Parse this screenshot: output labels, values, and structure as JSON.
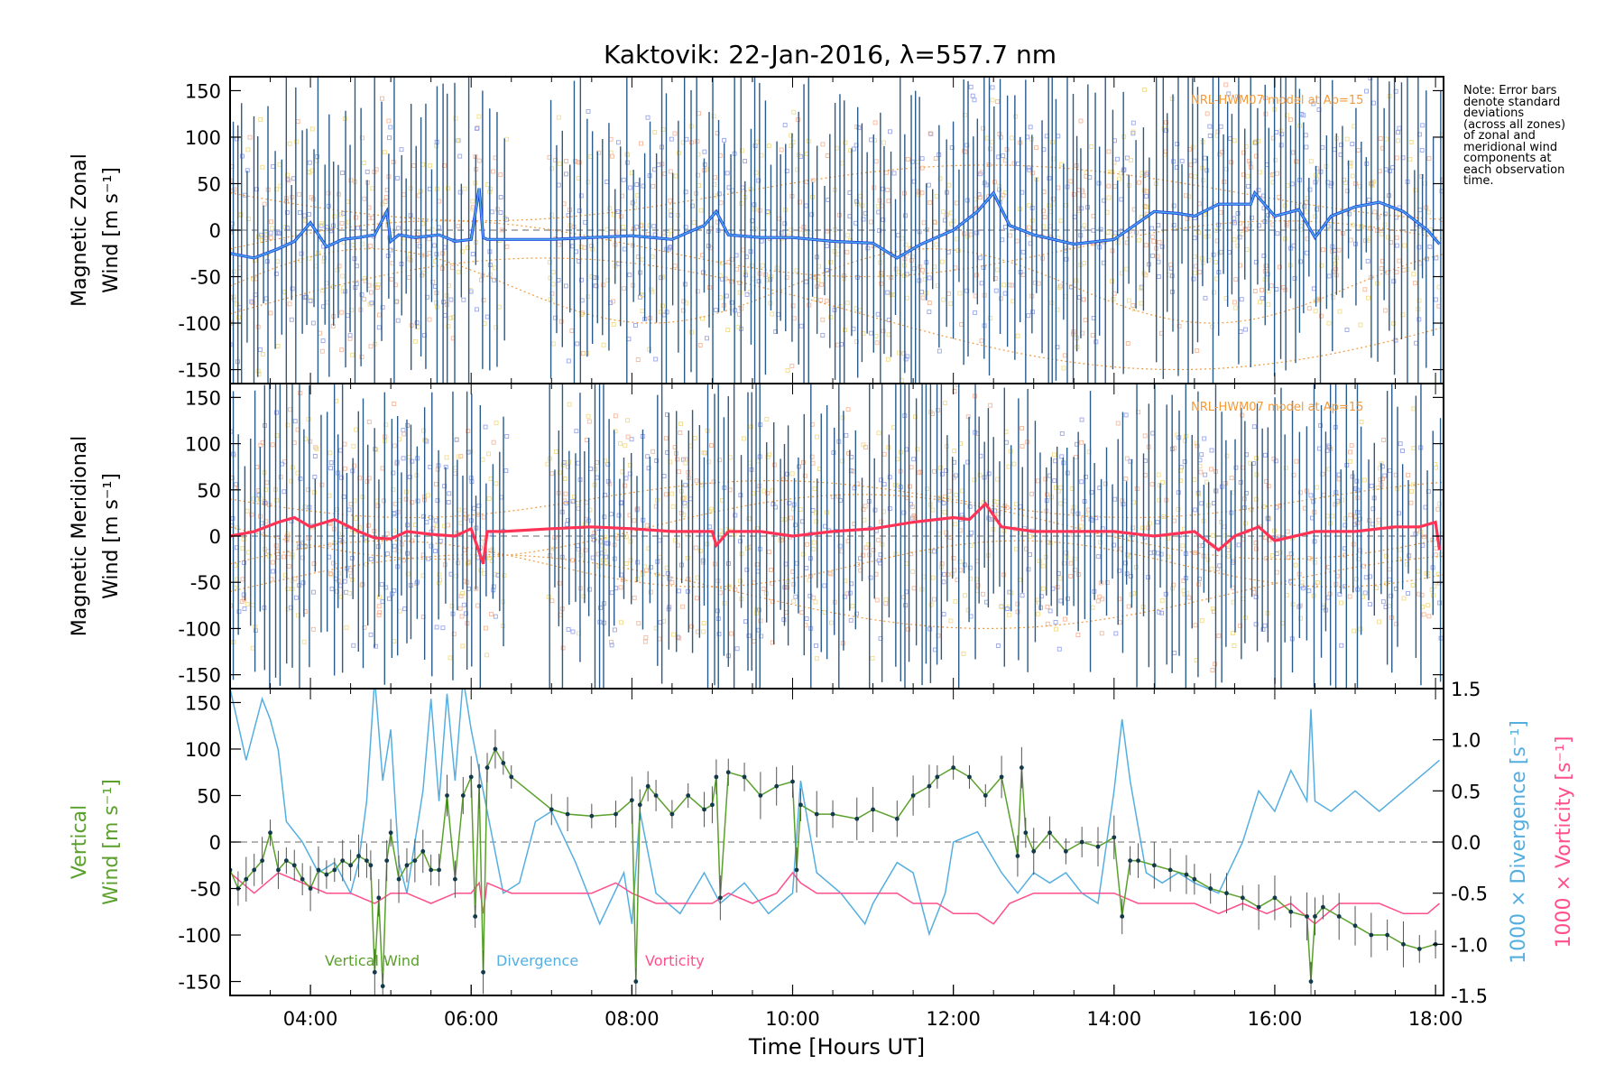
{
  "title": "Kaktovik: 22-Jan-2016, λ=557.7 nm",
  "note_lines": [
    "Note: Error bars",
    "denote standard",
    "deviations",
    "(across all zones)",
    "of zonal and",
    "meridional wind",
    "components at",
    "each observation",
    "time."
  ],
  "colors": {
    "zonal": "#1f3fe0",
    "zonal_light": "#4aa8e8",
    "meridional": "#ff3355",
    "vertical": "#5aa02c",
    "divergence": "#55aee0",
    "vorticity": "#ff4f8c",
    "errorbar": "#2a5a88",
    "model": "#f39a3c",
    "dots_orange": "#f7b89a",
    "dots_yellow": "#f2dd8a",
    "dots_blue": "#9aa6e8",
    "zero_line": "#888888"
  },
  "chart_data": [
    {
      "type": "line",
      "panel": "zonal",
      "ylabel_lines": [
        "Magnetic Zonal",
        "Wind [m s⁻¹]"
      ],
      "ylim": [
        -165,
        165
      ],
      "yticks": [
        -150,
        -100,
        -50,
        0,
        50,
        100,
        150
      ],
      "xlim": [
        3.0,
        18.1
      ],
      "model_label": "NRL-HWM07 model at Ap=15",
      "series": [
        {
          "values_x": [
            3.0,
            3.3,
            3.6,
            3.8,
            4.0,
            4.2,
            4.4,
            4.6,
            4.8,
            4.95,
            5.0,
            5.1,
            5.3,
            5.6,
            5.8,
            6.0,
            6.1,
            6.15,
            6.2,
            6.3,
            6.5,
            7.0,
            7.5,
            8.0,
            8.5,
            8.9,
            9.05,
            9.2,
            9.6,
            10.0,
            10.5,
            11.0,
            11.3,
            11.6,
            12.0,
            12.3,
            12.5,
            12.7,
            13.0,
            13.5,
            14.0,
            14.5,
            14.8,
            15.0,
            15.3,
            15.7,
            15.75,
            16.0,
            16.3,
            16.5,
            16.7,
            17.0,
            17.3,
            17.6,
            17.9,
            18.05
          ],
          "values_y": [
            -25,
            -30,
            -20,
            -12,
            8,
            -18,
            -10,
            -8,
            -5,
            20,
            -12,
            -5,
            -8,
            -5,
            -12,
            -10,
            45,
            -8,
            -10,
            -10,
            -10,
            -10,
            -8,
            -6,
            -10,
            5,
            20,
            -5,
            -8,
            -8,
            -12,
            -14,
            -30,
            -15,
            0,
            20,
            40,
            5,
            -5,
            -15,
            -10,
            20,
            18,
            15,
            28,
            28,
            40,
            15,
            22,
            -8,
            15,
            25,
            30,
            20,
            0,
            -15
          ]
        }
      ]
    },
    {
      "type": "line",
      "panel": "meridional",
      "ylabel_lines": [
        "Magnetic Meridional",
        "Wind [m s⁻¹]"
      ],
      "ylim": [
        -165,
        165
      ],
      "yticks": [
        -150,
        -100,
        -50,
        0,
        50,
        100,
        150
      ],
      "xlim": [
        3.0,
        18.1
      ],
      "model_label": "NRL-HWM07 model at Ap=15",
      "series": [
        {
          "values_x": [
            3.0,
            3.3,
            3.6,
            3.8,
            4.0,
            4.3,
            4.6,
            4.8,
            5.0,
            5.2,
            5.5,
            5.8,
            6.0,
            6.15,
            6.2,
            6.4,
            7.0,
            7.5,
            8.0,
            8.5,
            9.0,
            9.05,
            9.2,
            9.6,
            10.0,
            10.5,
            11.0,
            11.5,
            12.0,
            12.2,
            12.4,
            12.6,
            13.0,
            13.5,
            14.0,
            14.5,
            15.0,
            15.3,
            15.5,
            15.8,
            16.0,
            16.5,
            17.0,
            17.5,
            17.8,
            18.0,
            18.05
          ],
          "values_y": [
            0,
            5,
            15,
            20,
            10,
            18,
            5,
            -2,
            -3,
            5,
            2,
            0,
            8,
            -30,
            5,
            5,
            8,
            10,
            8,
            5,
            5,
            -10,
            5,
            5,
            0,
            5,
            8,
            15,
            20,
            18,
            35,
            10,
            5,
            5,
            5,
            0,
            5,
            -15,
            0,
            10,
            -5,
            5,
            5,
            10,
            10,
            15,
            -15
          ]
        }
      ]
    },
    {
      "type": "line",
      "panel": "vertical",
      "ylabel_lines": [
        "Vertical",
        "Wind [m s⁻¹]"
      ],
      "ylim": [
        -165,
        165
      ],
      "yticks": [
        -150,
        -100,
        -50,
        0,
        50,
        100,
        150
      ],
      "right_ylim": [
        -1.5,
        1.5
      ],
      "right_yticks": [
        "-1.5",
        "-1.0",
        "-0.5",
        "0.0",
        "0.5",
        "1.0",
        "1.5"
      ],
      "right_label_divergence": "1000 × Divergence [s⁻¹]",
      "right_label_vorticity": "1000 × Vorticity [s⁻¹]",
      "xlabel": "Time [Hours UT]",
      "xticks": [
        "04:00",
        "06:00",
        "08:00",
        "10:00",
        "12:00",
        "14:00",
        "16:00",
        "18:00"
      ],
      "xtick_values": [
        4,
        6,
        8,
        10,
        12,
        14,
        16,
        18
      ],
      "xlim": [
        3.0,
        18.1
      ],
      "legend": [
        "Vertical Wind",
        "Divergence",
        "Vorticity"
      ],
      "series": [
        {
          "name": "Vertical Wind",
          "x": [
            3.0,
            3.1,
            3.2,
            3.3,
            3.4,
            3.5,
            3.6,
            3.7,
            3.8,
            3.9,
            4.0,
            4.1,
            4.2,
            4.3,
            4.4,
            4.5,
            4.6,
            4.7,
            4.75,
            4.8,
            4.85,
            4.9,
            4.95,
            5.0,
            5.1,
            5.2,
            5.3,
            5.4,
            5.5,
            5.6,
            5.7,
            5.8,
            5.9,
            6.0,
            6.05,
            6.1,
            6.15,
            6.2,
            6.3,
            6.4,
            6.5,
            7.0,
            7.2,
            7.5,
            7.8,
            8.0,
            8.05,
            8.1,
            8.2,
            8.3,
            8.5,
            8.7,
            8.9,
            9.0,
            9.05,
            9.1,
            9.2,
            9.4,
            9.6,
            9.8,
            10.0,
            10.05,
            10.1,
            10.3,
            10.5,
            10.8,
            11.0,
            11.3,
            11.5,
            11.7,
            11.8,
            12.0,
            12.2,
            12.4,
            12.6,
            12.8,
            12.85,
            12.9,
            13.0,
            13.2,
            13.4,
            13.6,
            13.8,
            14.0,
            14.1,
            14.2,
            14.3,
            14.5,
            14.7,
            14.9,
            15.0,
            15.2,
            15.4,
            15.6,
            15.8,
            16.0,
            16.2,
            16.4,
            16.45,
            16.5,
            16.6,
            16.8,
            17.0,
            17.2,
            17.4,
            17.6,
            17.8,
            18.0
          ],
          "y": [
            -30,
            -50,
            -40,
            -30,
            -20,
            10,
            -30,
            -20,
            -25,
            -40,
            -50,
            -30,
            -35,
            -30,
            -20,
            -25,
            -15,
            -20,
            -25,
            -140,
            -60,
            -155,
            -20,
            10,
            -40,
            -25,
            -20,
            -10,
            -30,
            -30,
            50,
            -40,
            50,
            70,
            -80,
            60,
            -140,
            80,
            100,
            85,
            70,
            35,
            30,
            28,
            30,
            45,
            -150,
            40,
            60,
            50,
            30,
            50,
            35,
            40,
            70,
            -60,
            75,
            70,
            50,
            60,
            65,
            -30,
            40,
            30,
            30,
            25,
            35,
            25,
            50,
            60,
            70,
            80,
            70,
            50,
            70,
            -15,
            80,
            10,
            -10,
            10,
            -10,
            0,
            -5,
            5,
            -80,
            -20,
            -20,
            -25,
            -30,
            -35,
            -40,
            -50,
            -55,
            -60,
            -70,
            -60,
            -75,
            -80,
            -150,
            -80,
            -70,
            -80,
            -90,
            -100,
            -100,
            -110,
            -115,
            -110
          ]
        },
        {
          "name": "Divergence",
          "x": [
            3.0,
            3.2,
            3.4,
            3.5,
            3.6,
            3.7,
            3.9,
            4.1,
            4.3,
            4.5,
            4.6,
            4.7,
            4.8,
            4.9,
            5.0,
            5.1,
            5.2,
            5.4,
            5.5,
            5.6,
            5.7,
            5.8,
            5.9,
            6.0,
            6.1,
            6.2,
            6.4,
            6.6,
            6.8,
            7.0,
            7.3,
            7.6,
            7.9,
            8.0,
            8.1,
            8.3,
            8.6,
            8.9,
            9.1,
            9.4,
            9.7,
            10.0,
            10.1,
            10.3,
            10.6,
            10.9,
            11.0,
            11.3,
            11.5,
            11.7,
            11.9,
            12.0,
            12.3,
            12.6,
            12.8,
            13.0,
            13.2,
            13.4,
            13.6,
            13.8,
            14.0,
            14.1,
            14.2,
            14.4,
            14.6,
            14.8,
            15.0,
            15.3,
            15.6,
            15.8,
            16.0,
            16.2,
            16.4,
            16.45,
            16.5,
            16.7,
            17.0,
            17.3,
            17.6,
            17.9,
            18.05
          ],
          "y": [
            1.5,
            0.8,
            1.4,
            1.2,
            0.9,
            0.2,
            0.0,
            -0.3,
            -0.2,
            -0.5,
            -0.2,
            0.4,
            1.6,
            0.6,
            1.1,
            -0.2,
            -0.5,
            0.5,
            1.4,
            0.4,
            1.45,
            0.6,
            1.6,
            1.1,
            0.7,
            0.3,
            -0.5,
            -0.4,
            0.2,
            0.3,
            -0.2,
            -0.8,
            -0.3,
            -0.8,
            0.3,
            -0.5,
            -0.7,
            -0.3,
            -0.6,
            -0.4,
            -0.7,
            -0.5,
            0.6,
            -0.3,
            -0.5,
            -0.8,
            -0.6,
            -0.2,
            -0.3,
            -0.9,
            -0.5,
            0.0,
            0.1,
            -0.3,
            -0.5,
            -0.3,
            -0.4,
            -0.3,
            -0.5,
            -0.6,
            0.5,
            1.2,
            0.6,
            -0.3,
            -0.4,
            -0.3,
            -0.4,
            -0.5,
            0.0,
            0.5,
            0.3,
            0.7,
            0.4,
            1.3,
            0.4,
            0.3,
            0.5,
            0.3,
            0.5,
            0.7,
            0.8
          ]
        },
        {
          "name": "Vorticity",
          "x": [
            3.0,
            3.3,
            3.6,
            3.9,
            4.2,
            4.5,
            4.8,
            5.0,
            5.2,
            5.5,
            5.8,
            6.0,
            6.1,
            6.15,
            6.2,
            6.5,
            7.0,
            7.5,
            7.8,
            8.0,
            8.3,
            8.6,
            9.0,
            9.2,
            9.5,
            9.8,
            10.0,
            10.1,
            10.3,
            10.6,
            11.0,
            11.3,
            11.5,
            11.8,
            12.0,
            12.3,
            12.5,
            12.7,
            13.0,
            13.5,
            14.0,
            14.3,
            14.6,
            15.0,
            15.3,
            15.6,
            15.9,
            16.2,
            16.5,
            16.8,
            17.0,
            17.3,
            17.6,
            17.9,
            18.05
          ],
          "y": [
            -0.3,
            -0.5,
            -0.3,
            -0.4,
            -0.5,
            -0.5,
            -0.6,
            -0.5,
            -0.5,
            -0.6,
            -0.5,
            -0.5,
            -0.4,
            -0.7,
            -0.4,
            -0.5,
            -0.5,
            -0.5,
            -0.4,
            -0.5,
            -0.6,
            -0.6,
            -0.6,
            -0.5,
            -0.6,
            -0.5,
            -0.3,
            -0.4,
            -0.5,
            -0.5,
            -0.5,
            -0.5,
            -0.6,
            -0.6,
            -0.7,
            -0.7,
            -0.8,
            -0.6,
            -0.5,
            -0.5,
            -0.5,
            -0.6,
            -0.6,
            -0.6,
            -0.7,
            -0.6,
            -0.7,
            -0.6,
            -0.8,
            -0.6,
            -0.6,
            -0.6,
            -0.7,
            -0.7,
            -0.6
          ]
        }
      ]
    }
  ]
}
